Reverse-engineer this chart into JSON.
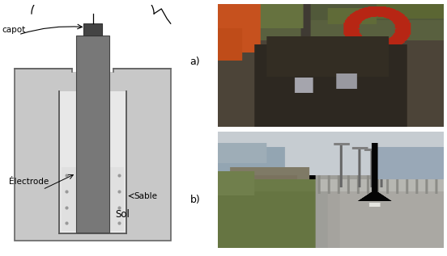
{
  "fig_width": 5.52,
  "fig_height": 3.17,
  "dpi": 100,
  "bg_color": "#ffffff",
  "diagram": {
    "soil_color": "#c8c8c8",
    "soil_edge": "#666666",
    "container_color": "#e8e8e8",
    "container_edge": "#555555",
    "electrode_color": "#787878",
    "electrode_edge": "#444444",
    "cap_color": "#444444",
    "cap_edge": "#333333",
    "sand_color": "#e0e0e0",
    "sand_dot_color": "#999999",
    "label_capot": "capot",
    "label_sable": "Sable",
    "label_electrode": "Électrode",
    "label_sol": "Sol",
    "fontsize": 7.5
  },
  "label_a": {
    "text": "a)",
    "fontsize": 9
  },
  "label_b": {
    "text": "b)",
    "fontsize": 9
  }
}
